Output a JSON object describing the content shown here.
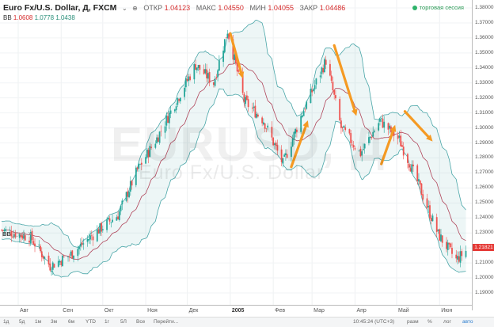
{
  "header": {
    "title": "Euro Fx/U.S. Dollar, Д, FXCM",
    "buttons": [
      "⌄",
      "⊕"
    ],
    "ohlc": [
      {
        "label": "ОТКР",
        "value": "1.04123"
      },
      {
        "label": "МАКС",
        "value": "1.04550"
      },
      {
        "label": "МИН",
        "value": "1.04055"
      },
      {
        "label": "ЗАКР",
        "value": "1.04486"
      }
    ],
    "bb_values": [
      "1.0608",
      "1.0778",
      "1.0438"
    ]
  },
  "session": "торговая сессия",
  "indicator": {
    "name": "BB",
    "controls": "▢ ⚙ ✕"
  },
  "watermark": {
    "symbol": "EURUSD, Д",
    "name": "Euro Fx/U.S. Dollar"
  },
  "colors": {
    "up": "#26a69a",
    "down": "#ef5350",
    "band": "#4aa6a8",
    "basis": "#b0455a",
    "arrow": "#f59a23"
  },
  "price_axis": {
    "ticks": [
      "1.38000",
      "1.37000",
      "1.36000",
      "1.35000",
      "1.34000",
      "1.33000",
      "1.32000",
      "1.31000",
      "1.30000",
      "1.29000",
      "1.28000",
      "1.27000",
      "1.26000",
      "1.25000",
      "1.24000",
      "1.23000",
      "1.22000",
      "1.21000",
      "1.20000",
      "1.19000"
    ],
    "last_price": "1.21821"
  },
  "time_axis": [
    {
      "label": "Авг",
      "bold": false
    },
    {
      "label": "Сен",
      "bold": false
    },
    {
      "label": "Окт",
      "bold": false
    },
    {
      "label": "Ноя",
      "bold": false
    },
    {
      "label": "Дек",
      "bold": false
    },
    {
      "label": "2005",
      "bold": true
    },
    {
      "label": "Фев",
      "bold": false
    },
    {
      "label": "Мар",
      "bold": false
    },
    {
      "label": "Апр",
      "bold": false
    },
    {
      "label": "Май",
      "bold": false
    },
    {
      "label": "Июн",
      "bold": false
    }
  ],
  "bottom_bar": {
    "ranges": [
      "1д",
      "5д",
      "1м",
      "3м",
      "6м",
      "YTD",
      "1г",
      "5Л",
      "Все",
      "Перейти..."
    ],
    "time": "10:45:24 (UTC+3)",
    "options": [
      "разм",
      "%",
      "лог",
      "авто"
    ]
  },
  "chart_data": {
    "type": "candlestick",
    "symbol": "EURUSD",
    "ylim": [
      1.185,
      1.385
    ],
    "xlim": [
      "2004-07-20",
      "2005-06-22"
    ],
    "series": [
      {
        "name": "EURUSD",
        "type": "candlestick"
      },
      {
        "name": "BB",
        "type": "bollinger"
      }
    ],
    "keypoints": [
      {
        "date": "2004-07-20",
        "close": 1.232
      },
      {
        "date": "2004-08-10",
        "close": 1.227
      },
      {
        "date": "2004-08-24",
        "close": 1.208
      },
      {
        "date": "2004-09-07",
        "close": 1.215
      },
      {
        "date": "2004-09-28",
        "close": 1.232
      },
      {
        "date": "2004-10-12",
        "close": 1.242
      },
      {
        "date": "2004-10-26",
        "close": 1.272
      },
      {
        "date": "2004-11-09",
        "close": 1.293
      },
      {
        "date": "2004-11-23",
        "close": 1.318
      },
      {
        "date": "2004-12-07",
        "close": 1.342
      },
      {
        "date": "2004-12-20",
        "close": 1.33
      },
      {
        "date": "2004-12-30",
        "close": 1.365
      },
      {
        "date": "2005-01-11",
        "close": 1.318
      },
      {
        "date": "2005-01-25",
        "close": 1.305
      },
      {
        "date": "2005-02-08",
        "close": 1.276
      },
      {
        "date": "2005-02-22",
        "close": 1.31
      },
      {
        "date": "2005-03-11",
        "close": 1.345
      },
      {
        "date": "2005-03-22",
        "close": 1.3
      },
      {
        "date": "2005-04-05",
        "close": 1.283
      },
      {
        "date": "2005-04-19",
        "close": 1.305
      },
      {
        "date": "2005-05-03",
        "close": 1.292
      },
      {
        "date": "2005-05-17",
        "close": 1.262
      },
      {
        "date": "2005-05-31",
        "close": 1.229
      },
      {
        "date": "2005-06-13",
        "close": 1.212
      },
      {
        "date": "2005-06-20",
        "close": 1.218
      }
    ],
    "annotations": [
      {
        "type": "arrow",
        "direction": "down",
        "from": [
          "2005-01-01",
          1.363
        ],
        "to": [
          "2005-01-10",
          1.333
        ]
      },
      {
        "type": "arrow",
        "direction": "up",
        "from": [
          "2005-02-14",
          1.274
        ],
        "to": [
          "2005-02-26",
          1.305
        ]
      },
      {
        "type": "arrow",
        "direction": "down",
        "from": [
          "2005-03-17",
          1.355
        ],
        "to": [
          "2005-04-02",
          1.308
        ]
      },
      {
        "type": "arrow",
        "direction": "up",
        "from": [
          "2005-04-20",
          1.276
        ],
        "to": [
          "2005-04-30",
          1.302
        ]
      },
      {
        "type": "arrow",
        "direction": "down",
        "from": [
          "2005-05-07",
          1.311
        ],
        "to": [
          "2005-05-27",
          1.291
        ]
      }
    ]
  }
}
